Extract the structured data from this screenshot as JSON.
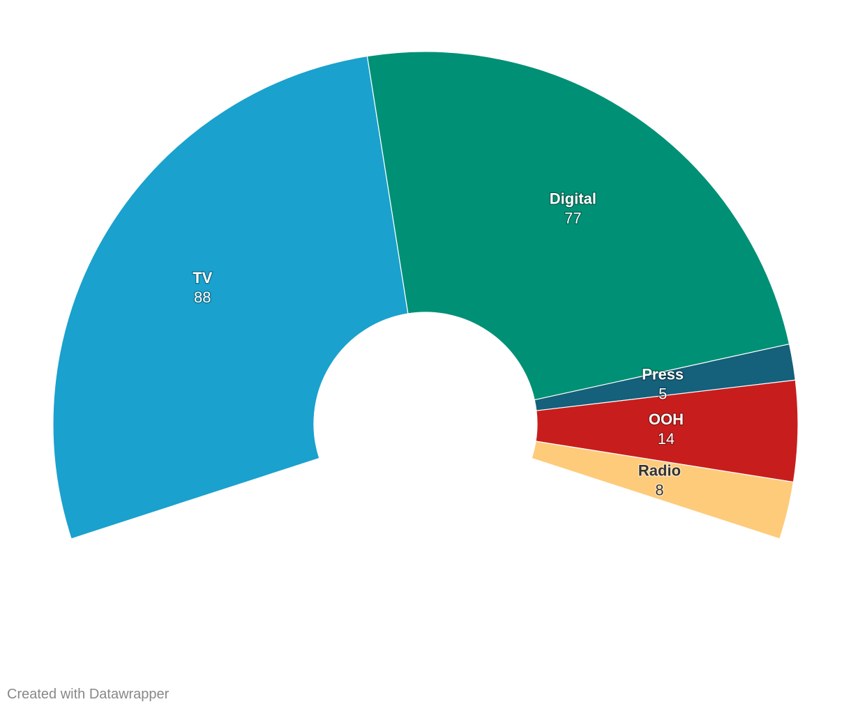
{
  "chart_data": {
    "type": "pie",
    "variant": "semi-donut",
    "slices": [
      {
        "label": "TV",
        "value": 88,
        "color": "#1aa1cd",
        "label_color": "light"
      },
      {
        "label": "Digital",
        "value": 77,
        "color": "#009075",
        "label_color": "light"
      },
      {
        "label": "Press",
        "value": 5,
        "color": "#15607a",
        "label_color": "light"
      },
      {
        "label": "OOH",
        "value": 14,
        "color": "#c71e1d",
        "label_color": "light"
      },
      {
        "label": "Radio",
        "value": 8,
        "color": "#fecb7b",
        "label_color": "dark"
      }
    ]
  },
  "footer": {
    "credit": "Created with Datawrapper"
  }
}
